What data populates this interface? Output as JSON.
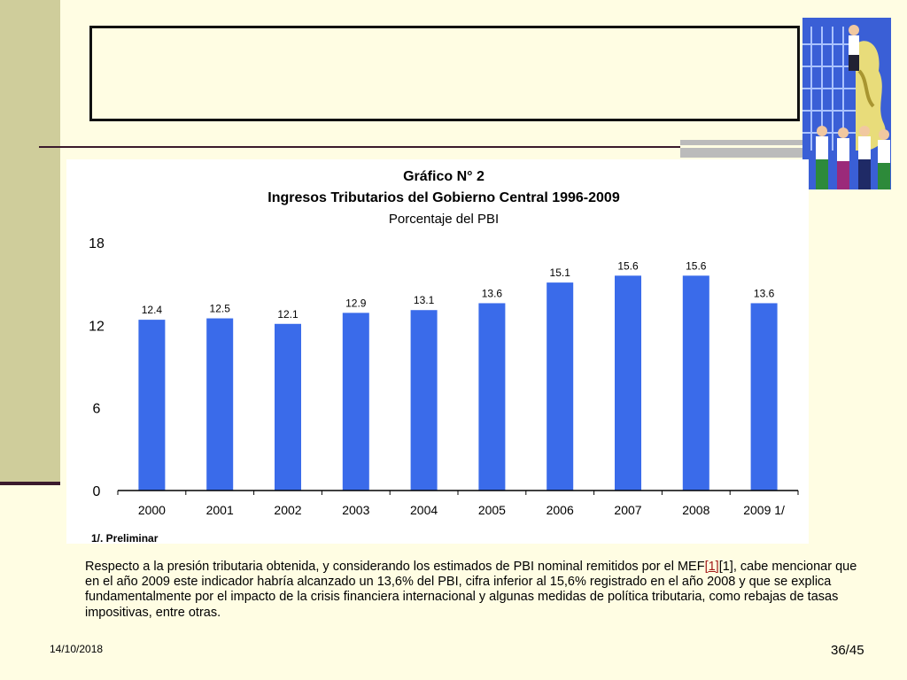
{
  "slide": {
    "date": "14/10/2018",
    "page": "36/45",
    "caption": {
      "text_before": "Respecto a la presión tributaria obtenida, y considerando los estimados de PBI nominal remitidos por el MEF",
      "link_1": "[1]",
      "ref_2": "[1]",
      "text_after": ", cabe mencionar que en el año 2009  este indicador habría alcanzado un 13,6% del PBI, cifra inferior al 15,6% registrado en el año 2008 y que se explica fundamentalmente por el impacto de la crisis financiera internacional y algunas medidas de política tributaria, como rebajas de tasas impositivas, entre otras."
    }
  },
  "chart_data": {
    "type": "bar",
    "title": "Gráfico N° 2",
    "subtitle": "Ingresos Tributarios del Gobierno Central 1996-2009",
    "unit_label": "Porcentaje del PBI",
    "categories": [
      "2000",
      "2001",
      "2002",
      "2003",
      "2004",
      "2005",
      "2006",
      "2007",
      "2008",
      "2009 1/"
    ],
    "values": [
      12.4,
      12.5,
      12.1,
      12.9,
      13.1,
      13.6,
      15.1,
      15.6,
      15.6,
      13.6
    ],
    "data_labels": [
      "12.4",
      "12.5",
      "12.1",
      "12.9",
      "13.1",
      "13.6",
      "15.1",
      "15.6",
      "15.6",
      "13.6"
    ],
    "y_ticks": [
      "0",
      "6",
      "12",
      "18"
    ],
    "ylim": [
      0,
      18
    ],
    "footnote": "1/. Preliminar",
    "grid": false,
    "colors": {
      "bar": "#3a6bea",
      "axis": "#000000"
    }
  }
}
